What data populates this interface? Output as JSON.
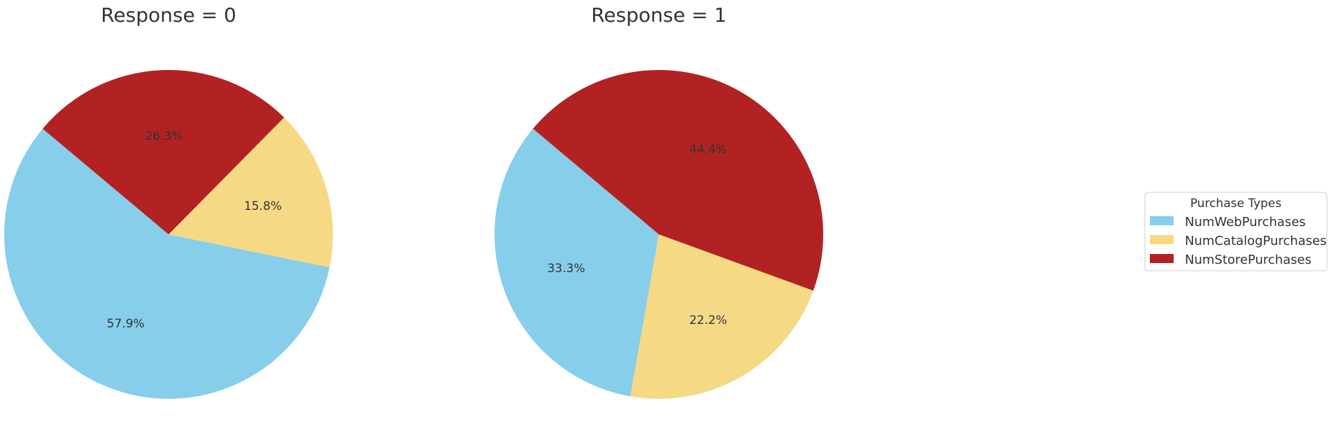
{
  "colors": {
    "NumWebPurchases": "#87CEEB",
    "NumCatalogPurchases": "#F6D985",
    "NumStorePurchases": "#B22222"
  },
  "chart_data": [
    {
      "type": "pie",
      "title": "Response = 0",
      "labels": [
        "NumWebPurchases",
        "NumCatalogPurchases",
        "NumStorePurchases"
      ],
      "values": [
        57.9,
        15.8,
        26.3
      ],
      "value_labels": [
        "57.9%",
        "15.8%",
        "26.3%"
      ],
      "start_angle_deg": 140,
      "direction": "counterclockwise"
    },
    {
      "type": "pie",
      "title": "Response = 1",
      "labels": [
        "NumWebPurchases",
        "NumCatalogPurchases",
        "NumStorePurchases"
      ],
      "values": [
        33.3,
        22.2,
        44.4
      ],
      "value_labels": [
        "33.3%",
        "22.2%",
        "44.4%"
      ],
      "start_angle_deg": 140,
      "direction": "counterclockwise"
    }
  ],
  "legend": {
    "title": "Purchase Types",
    "placement": "center-right",
    "items": [
      "NumWebPurchases",
      "NumCatalogPurchases",
      "NumStorePurchases"
    ]
  }
}
